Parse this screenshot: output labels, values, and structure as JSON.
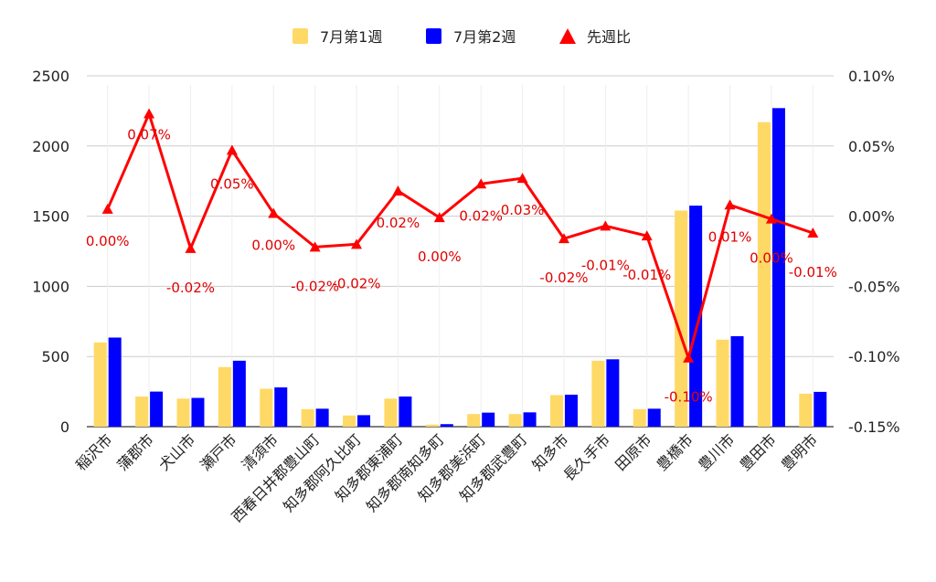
{
  "chart_data": {
    "type": "bar",
    "combo": "bar+line",
    "categories": [
      "稲沢市",
      "蒲郡市",
      "犬山市",
      "瀬戸市",
      "清須市",
      "西春日井郡豊山町",
      "知多郡阿久比町",
      "知多郡東浦町",
      "知多郡南知多町",
      "知多郡美浜町",
      "知多郡武豊町",
      "知多市",
      "長久手市",
      "田原市",
      "豊橋市",
      "豊川市",
      "豊田市",
      "豊明市"
    ],
    "series": [
      {
        "name": "7月第1週",
        "type": "bar",
        "axis": "left",
        "color": "#FFD966",
        "values": [
          600,
          215,
          200,
          425,
          270,
          125,
          80,
          200,
          15,
          90,
          90,
          225,
          470,
          125,
          1540,
          620,
          2170,
          235
        ]
      },
      {
        "name": "7月第2週",
        "type": "bar",
        "axis": "left",
        "color": "#0000FF",
        "values": [
          635,
          250,
          205,
          470,
          280,
          128,
          82,
          215,
          18,
          100,
          102,
          228,
          480,
          128,
          1575,
          645,
          2270,
          248
        ]
      },
      {
        "name": "先週比",
        "type": "line",
        "axis": "right",
        "color": "#FF0000",
        "values": [
          0.005,
          0.073,
          -0.023,
          0.047,
          0.002,
          -0.022,
          -0.02,
          0.018,
          -0.001,
          0.023,
          0.027,
          -0.016,
          -0.007,
          -0.014,
          -0.101,
          0.008,
          -0.002,
          -0.012
        ],
        "labels": [
          "0.00%",
          "0.07%",
          "-0.02%",
          "0.05%",
          "0.00%",
          "-0.02%",
          "-0.02%",
          "0.02%",
          "0.00%",
          "0.02%",
          "0.03%",
          "-0.02%",
          "-0.01%",
          "-0.01%",
          "-0.10%",
          "0.01%",
          "0.00%",
          "-0.01%"
        ]
      }
    ],
    "left_axis": {
      "ylim": [
        0,
        2500
      ],
      "ticks": [
        "0",
        "500",
        "1000",
        "1500",
        "2000",
        "2500"
      ]
    },
    "right_axis": {
      "ylim": [
        -0.15,
        0.1
      ],
      "ticks": [
        "-0.15%",
        "-0.10%",
        "-0.05%",
        "0.00%",
        "0.05%",
        "0.10%"
      ]
    },
    "grid": true,
    "legend_position": "top-center"
  }
}
